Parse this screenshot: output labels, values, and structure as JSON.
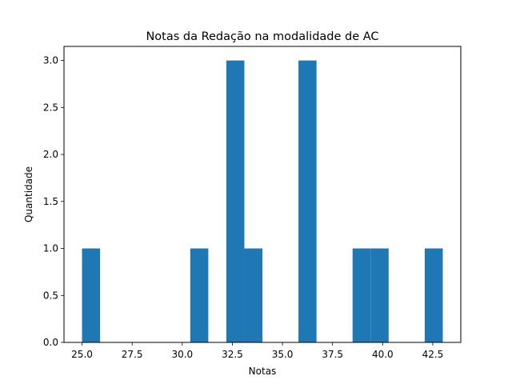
{
  "chart_data": {
    "type": "bar",
    "title": "Notas da Redação na modalidade de AC",
    "xlabel": "Notas",
    "ylabel": "Quantidade",
    "xlim": [
      24.1,
      43.9
    ],
    "ylim": [
      0,
      3.15
    ],
    "grid": false,
    "bar_color": "#1f77b4",
    "x_ticks": [
      "25.0",
      "27.5",
      "30.0",
      "32.5",
      "35.0",
      "37.5",
      "40.0",
      "42.5"
    ],
    "x_tick_values": [
      25.0,
      27.5,
      30.0,
      32.5,
      35.0,
      37.5,
      40.0,
      42.5
    ],
    "y_ticks": [
      "0.0",
      "0.5",
      "1.0",
      "1.5",
      "2.0",
      "2.5",
      "3.0"
    ],
    "y_tick_values": [
      0.0,
      0.5,
      1.0,
      1.5,
      2.0,
      2.5,
      3.0
    ],
    "bins": [
      {
        "start": 25.0,
        "end": 25.9,
        "count": 1
      },
      {
        "start": 30.4,
        "end": 31.3,
        "count": 1
      },
      {
        "start": 32.2,
        "end": 33.1,
        "count": 3
      },
      {
        "start": 33.1,
        "end": 34.0,
        "count": 1
      },
      {
        "start": 35.8,
        "end": 36.7,
        "count": 3
      },
      {
        "start": 38.5,
        "end": 39.4,
        "count": 1
      },
      {
        "start": 39.4,
        "end": 40.3,
        "count": 1
      },
      {
        "start": 42.1,
        "end": 43.0,
        "count": 1
      }
    ]
  }
}
